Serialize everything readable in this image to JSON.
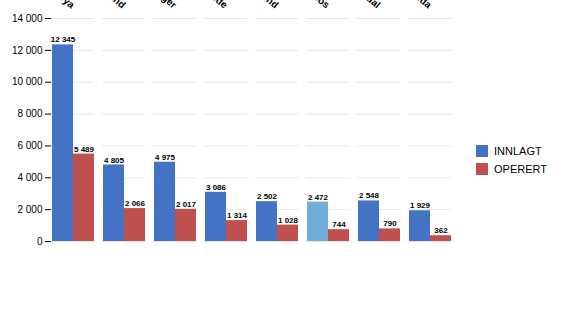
{
  "chart_data": {
    "type": "bar",
    "categories": [
      "St.Olav - Øya",
      "Ålesund",
      "Levanger",
      "Molde",
      "Kristiansund",
      "Namsos",
      "Orkdal",
      "Volda"
    ],
    "series": [
      {
        "name": "INNLAGT",
        "color": "#4472C4",
        "colors": [
          "#4472C4",
          "#4472C4",
          "#4472C4",
          "#4472C4",
          "#4472C4",
          "#70ADD9",
          "#4472C4",
          "#4472C4"
        ],
        "values": [
          12345,
          4805,
          4975,
          3086,
          2502,
          2472,
          2548,
          1929
        ],
        "value_labels": [
          "12 345",
          "4 805",
          "4 975",
          "3 086",
          "2 502",
          "2 472",
          "2 548",
          "1 929"
        ]
      },
      {
        "name": "OPERERT",
        "color": "#C0504D",
        "values": [
          5489,
          2066,
          2017,
          1314,
          1028,
          744,
          790,
          362
        ],
        "value_labels": [
          "5 489",
          "2 066",
          "2 017",
          "1 314",
          "1 028",
          "744",
          "790",
          "362"
        ]
      }
    ],
    "ylim": [
      0,
      14000
    ],
    "yticks": [
      0,
      {
        "value": 2000,
        "label": "2 000"
      },
      {
        "value": 4000,
        "label": "4 000"
      },
      {
        "value": 6000,
        "label": "6 000"
      },
      {
        "value": 8000,
        "label": "8 000"
      },
      {
        "value": 10000,
        "label": "10 000"
      },
      {
        "value": 12000,
        "label": "12 000"
      },
      {
        "value": 14000,
        "label": "14 000"
      }
    ],
    "grid": true,
    "legend": "right",
    "data_labels": true
  }
}
